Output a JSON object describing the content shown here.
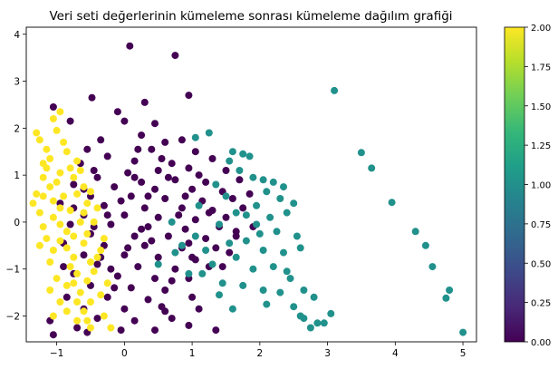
{
  "chart_data": {
    "type": "scatter",
    "title": "Veri seti değerlerinin kümeleme sonrası kümeleme dağılım grafiği",
    "xlabel": "",
    "ylabel": "",
    "xlim": [
      -1.45,
      5.2
    ],
    "ylim": [
      -2.55,
      4.15
    ],
    "x_ticks": [
      -1,
      0,
      1,
      2,
      3,
      4,
      5
    ],
    "y_ticks": [
      -2,
      -1,
      0,
      1,
      2,
      3,
      4
    ],
    "grid": false,
    "colorbar": {
      "label": "",
      "range": [
        0,
        2
      ],
      "ticks": [
        "0.00",
        "0.25",
        "0.50",
        "0.75",
        "1.00",
        "1.25",
        "1.50",
        "1.75",
        "2.00"
      ],
      "colormap": [
        "#440154",
        "#482878",
        "#3e4989",
        "#31688e",
        "#26828e",
        "#1f9e89",
        "#35b779",
        "#6ece58",
        "#b5de2b",
        "#fde725"
      ]
    },
    "series": [
      {
        "cluster": 0,
        "color": "#440154",
        "points": [
          [
            0.08,
            3.75
          ],
          [
            0.75,
            3.55
          ],
          [
            -0.48,
            2.65
          ],
          [
            0.95,
            2.7
          ],
          [
            -0.1,
            2.35
          ],
          [
            0.3,
            2.55
          ],
          [
            -1.05,
            2.45
          ],
          [
            -0.8,
            2.15
          ],
          [
            0.45,
            2.1
          ],
          [
            0.0,
            2.15
          ],
          [
            0.25,
            1.85
          ],
          [
            -0.35,
            1.75
          ],
          [
            0.6,
            1.7
          ],
          [
            0.85,
            1.75
          ],
          [
            -0.55,
            1.55
          ],
          [
            0.4,
            1.55
          ],
          [
            1.05,
            1.5
          ],
          [
            0.15,
            1.3
          ],
          [
            -0.25,
            1.4
          ],
          [
            0.7,
            1.25
          ],
          [
            1.3,
            1.35
          ],
          [
            -0.65,
            1.25
          ],
          [
            0.05,
            1.05
          ],
          [
            0.5,
            1.1
          ],
          [
            0.95,
            1.15
          ],
          [
            1.5,
            1.1
          ],
          [
            -0.4,
            0.95
          ],
          [
            0.25,
            0.85
          ],
          [
            0.75,
            0.9
          ],
          [
            1.2,
            0.85
          ],
          [
            1.7,
            0.9
          ],
          [
            -0.75,
            0.8
          ],
          [
            -0.15,
            0.75
          ],
          [
            0.45,
            0.7
          ],
          [
            1.0,
            0.7
          ],
          [
            1.45,
            0.65
          ],
          [
            -0.5,
            0.55
          ],
          [
            0.1,
            0.55
          ],
          [
            0.6,
            0.5
          ],
          [
            1.15,
            0.45
          ],
          [
            1.6,
            0.5
          ],
          [
            -0.95,
            0.4
          ],
          [
            -0.3,
            0.35
          ],
          [
            0.3,
            0.3
          ],
          [
            0.85,
            0.3
          ],
          [
            1.3,
            0.25
          ],
          [
            1.75,
            0.3
          ],
          [
            -0.6,
            0.15
          ],
          [
            0.0,
            0.15
          ],
          [
            0.5,
            0.1
          ],
          [
            1.05,
            0.05
          ],
          [
            1.5,
            0.1
          ],
          [
            -0.8,
            -0.05
          ],
          [
            -0.2,
            -0.05
          ],
          [
            0.35,
            -0.1
          ],
          [
            0.9,
            -0.15
          ],
          [
            1.4,
            -0.1
          ],
          [
            1.9,
            -0.1
          ],
          [
            -0.5,
            -0.25
          ],
          [
            0.15,
            -0.3
          ],
          [
            0.65,
            -0.3
          ],
          [
            1.2,
            -0.35
          ],
          [
            1.65,
            -0.3
          ],
          [
            -0.9,
            -0.45
          ],
          [
            -0.3,
            -0.5
          ],
          [
            0.3,
            -0.5
          ],
          [
            0.85,
            -0.55
          ],
          [
            1.35,
            -0.55
          ],
          [
            -0.6,
            -0.7
          ],
          [
            0.0,
            -0.7
          ],
          [
            0.5,
            -0.75
          ],
          [
            1.05,
            -0.8
          ],
          [
            -0.4,
            -0.9
          ],
          [
            0.2,
            -0.95
          ],
          [
            0.75,
            -1.0
          ],
          [
            1.25,
            -0.95
          ],
          [
            -0.75,
            -1.1
          ],
          [
            -0.1,
            -1.15
          ],
          [
            0.45,
            -1.2
          ],
          [
            0.95,
            -1.2
          ],
          [
            -0.5,
            -1.35
          ],
          [
            0.1,
            -1.4
          ],
          [
            0.6,
            -1.45
          ],
          [
            -0.85,
            -1.6
          ],
          [
            -0.25,
            -1.6
          ],
          [
            0.35,
            -1.65
          ],
          [
            1.0,
            -1.6
          ],
          [
            -0.6,
            -1.85
          ],
          [
            0.0,
            -1.85
          ],
          [
            0.55,
            -1.8
          ],
          [
            -0.4,
            -2.05
          ],
          [
            0.15,
            -2.1
          ],
          [
            0.7,
            -2.05
          ],
          [
            -1.1,
            -2.1
          ],
          [
            -0.7,
            -2.25
          ],
          [
            -0.05,
            -2.3
          ],
          [
            0.45,
            -2.3
          ],
          [
            1.35,
            -2.3
          ],
          [
            -1.05,
            -2.4
          ],
          [
            -0.55,
            -2.35
          ],
          [
            0.95,
            -2.2
          ],
          [
            1.1,
            -1.85
          ],
          [
            0.25,
            -0.15
          ],
          [
            -0.05,
            0.45
          ],
          [
            0.65,
            0.95
          ],
          [
            -0.45,
            1.1
          ],
          [
            0.9,
            0.55
          ],
          [
            0.4,
            -0.4
          ],
          [
            1.55,
            -0.65
          ],
          [
            -0.2,
            -1.0
          ],
          [
            0.7,
            -1.25
          ],
          [
            1.25,
            0.2
          ],
          [
            0.15,
            0.95
          ],
          [
            -0.75,
            0.3
          ],
          [
            -0.25,
            0.15
          ],
          [
            1.85,
            0.6
          ],
          [
            0.55,
            1.35
          ],
          [
            -0.35,
            -0.75
          ],
          [
            0.95,
            -0.45
          ],
          [
            0.05,
            -0.55
          ],
          [
            1.45,
            -0.95
          ],
          [
            -0.6,
            0.7
          ],
          [
            0.2,
            1.55
          ],
          [
            1.1,
            1.0
          ],
          [
            -0.15,
            -1.4
          ],
          [
            0.8,
            0.15
          ],
          [
            1.65,
            -0.2
          ],
          [
            -0.9,
            -0.95
          ],
          [
            0.35,
            0.55
          ],
          [
            -0.45,
            -0.1
          ],
          [
            1.0,
            -0.75
          ],
          [
            0.6,
            -1.9
          ]
        ]
      },
      {
        "cluster": 1,
        "color": "#21918c",
        "points": [
          [
            3.1,
            2.8
          ],
          [
            3.5,
            1.48
          ],
          [
            3.65,
            1.15
          ],
          [
            3.95,
            0.42
          ],
          [
            4.3,
            -0.2
          ],
          [
            4.45,
            -0.5
          ],
          [
            4.55,
            -0.95
          ],
          [
            4.8,
            -1.45
          ],
          [
            4.75,
            -1.62
          ],
          [
            5.0,
            -2.35
          ],
          [
            1.05,
            1.8
          ],
          [
            1.25,
            1.9
          ],
          [
            1.6,
            1.5
          ],
          [
            1.75,
            1.45
          ],
          [
            1.85,
            1.4
          ],
          [
            1.55,
            1.3
          ],
          [
            1.7,
            1.1
          ],
          [
            1.9,
            0.95
          ],
          [
            2.05,
            0.9
          ],
          [
            2.2,
            0.85
          ],
          [
            2.35,
            0.75
          ],
          [
            2.1,
            0.65
          ],
          [
            2.3,
            0.5
          ],
          [
            2.5,
            0.4
          ],
          [
            2.4,
            0.2
          ],
          [
            2.15,
            0.1
          ],
          [
            1.95,
            -0.05
          ],
          [
            2.25,
            -0.2
          ],
          [
            2.55,
            -0.3
          ],
          [
            1.8,
            -0.4
          ],
          [
            2.05,
            -0.6
          ],
          [
            2.35,
            -0.65
          ],
          [
            2.6,
            -0.55
          ],
          [
            2.2,
            -0.95
          ],
          [
            1.9,
            -1.0
          ],
          [
            2.45,
            -1.2
          ],
          [
            1.75,
            -1.35
          ],
          [
            2.05,
            -1.45
          ],
          [
            2.3,
            -1.5
          ],
          [
            2.65,
            -1.45
          ],
          [
            2.1,
            -1.75
          ],
          [
            2.5,
            -1.8
          ],
          [
            2.65,
            -2.05
          ],
          [
            2.75,
            -2.25
          ],
          [
            2.85,
            -2.15
          ],
          [
            2.95,
            -2.15
          ],
          [
            3.05,
            -1.95
          ],
          [
            2.8,
            -1.6
          ],
          [
            2.6,
            -2.0
          ],
          [
            1.4,
            -0.05
          ],
          [
            1.55,
            -0.45
          ],
          [
            1.3,
            -0.9
          ],
          [
            1.15,
            -1.1
          ],
          [
            0.95,
            -1.1
          ],
          [
            1.45,
            -1.3
          ],
          [
            1.2,
            -0.6
          ],
          [
            1.1,
            0.35
          ],
          [
            0.85,
            -0.5
          ],
          [
            1.35,
            0.8
          ],
          [
            1.5,
            0.55
          ],
          [
            1.65,
            0.2
          ],
          [
            1.8,
            0.15
          ],
          [
            1.95,
            0.35
          ],
          [
            2.0,
            -0.25
          ],
          [
            1.65,
            -0.75
          ],
          [
            1.4,
            -1.55
          ],
          [
            1.6,
            -1.85
          ],
          [
            2.4,
            -1.05
          ],
          [
            0.5,
            -0.9
          ],
          [
            0.75,
            -0.65
          ],
          [
            1.05,
            -0.3
          ],
          [
            0.7,
            0.0
          ]
        ]
      },
      {
        "cluster": 2,
        "color": "#fde725",
        "points": [
          [
            -1.3,
            1.9
          ],
          [
            -1.25,
            1.75
          ],
          [
            -1.15,
            1.55
          ],
          [
            -1.1,
            1.35
          ],
          [
            -1.15,
            1.15
          ],
          [
            -1.2,
            0.95
          ],
          [
            -1.1,
            0.75
          ],
          [
            -1.2,
            0.55
          ],
          [
            -1.05,
            0.45
          ],
          [
            -0.95,
            0.3
          ],
          [
            -1.05,
            0.1
          ],
          [
            -0.95,
            -0.05
          ],
          [
            -0.85,
            -0.2
          ],
          [
            -0.95,
            -0.4
          ],
          [
            -0.85,
            -0.55
          ],
          [
            -0.75,
            -0.75
          ],
          [
            -0.8,
            -0.95
          ],
          [
            -0.7,
            -1.1
          ],
          [
            -0.75,
            -1.3
          ],
          [
            -0.65,
            -1.5
          ],
          [
            -0.7,
            -1.7
          ],
          [
            -0.6,
            -1.9
          ],
          [
            -0.55,
            -2.1
          ],
          [
            -0.5,
            -2.25
          ],
          [
            -0.2,
            -2.25
          ],
          [
            -0.35,
            -1.55
          ],
          [
            -0.25,
            -1.3
          ],
          [
            -0.45,
            -1.05
          ],
          [
            -0.5,
            -0.85
          ],
          [
            -0.35,
            -0.6
          ],
          [
            -0.6,
            -0.45
          ],
          [
            -0.55,
            -0.25
          ],
          [
            -0.45,
            0.0
          ],
          [
            -0.6,
            0.2
          ],
          [
            -0.55,
            0.4
          ],
          [
            -0.7,
            0.6
          ],
          [
            -0.6,
            0.75
          ],
          [
            -0.75,
            0.95
          ],
          [
            -0.8,
            1.15
          ],
          [
            -0.7,
            1.3
          ],
          [
            -0.85,
            1.5
          ],
          [
            -0.9,
            1.7
          ],
          [
            -1.0,
            1.95
          ],
          [
            -1.05,
            2.2
          ],
          [
            -0.95,
            2.35
          ],
          [
            -1.3,
            0.6
          ],
          [
            -1.35,
            0.4
          ],
          [
            -1.25,
            0.2
          ],
          [
            -1.2,
            -0.1
          ],
          [
            -1.15,
            -0.35
          ],
          [
            -1.05,
            -0.6
          ],
          [
            -1.1,
            -0.85
          ],
          [
            -1.0,
            -1.2
          ],
          [
            -1.1,
            -1.45
          ],
          [
            -0.95,
            -1.7
          ],
          [
            -0.85,
            -1.9
          ],
          [
            -1.05,
            -2.0
          ],
          [
            -0.9,
            0.55
          ],
          [
            -0.65,
            0.0
          ],
          [
            -0.4,
            0.3
          ],
          [
            -0.3,
            -0.35
          ],
          [
            -0.75,
            -0.3
          ],
          [
            -0.8,
            0.25
          ],
          [
            -0.5,
            0.65
          ],
          [
            -0.4,
            -0.75
          ],
          [
            -0.55,
            -1.25
          ],
          [
            -0.85,
            -1.35
          ],
          [
            -1.0,
            0.85
          ],
          [
            -0.95,
            1.05
          ],
          [
            -1.2,
            1.25
          ],
          [
            -0.65,
            1.1
          ],
          [
            -0.5,
            -1.7
          ],
          [
            -0.3,
            -2.0
          ],
          [
            -0.7,
            -2.1
          ],
          [
            -1.25,
            -0.5
          ]
        ]
      }
    ]
  }
}
